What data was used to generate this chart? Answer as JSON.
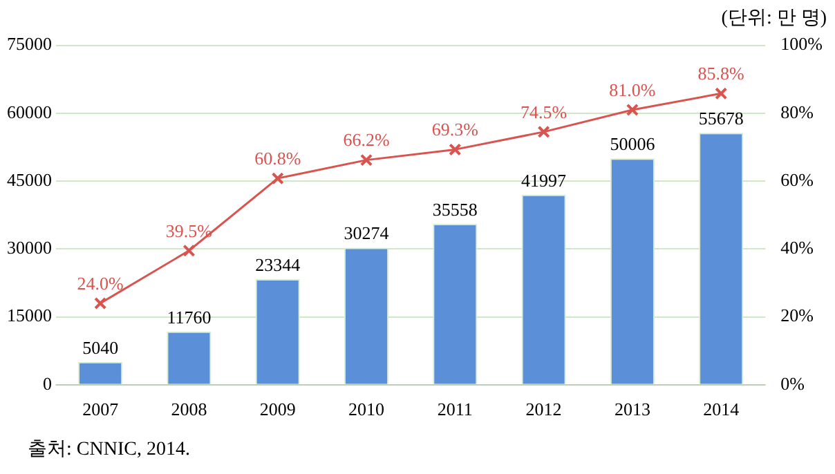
{
  "chart_data": {
    "type": "bar",
    "categories": [
      "2007",
      "2008",
      "2009",
      "2010",
      "2011",
      "2012",
      "2013",
      "2014"
    ],
    "series": [
      {
        "color": "#5b8fd8",
        "values": [
          5040,
          11760,
          23344,
          30274,
          35558,
          41997,
          50006,
          55678
        ],
        "value_labels": [
          "5040",
          "11760",
          "23344",
          "30274",
          "35558",
          "41997",
          "50006",
          "55678"
        ]
      },
      {
        "type": "line",
        "axis": "y2",
        "color": "#d9534f",
        "marker": "cross",
        "values": [
          24.0,
          39.5,
          60.8,
          66.2,
          69.3,
          74.5,
          81.0,
          85.8
        ],
        "value_labels": [
          "24.0%",
          "39.5%",
          "60.8%",
          "66.2%",
          "69.3%",
          "74.5%",
          "81.0%",
          "85.8%"
        ]
      }
    ],
    "ylim": [
      0,
      75000
    ],
    "yticks": [
      0,
      15000,
      30000,
      45000,
      60000,
      75000
    ],
    "y2lim": [
      0,
      100
    ],
    "y2ticks": [
      {
        "value": 0,
        "label": "0%"
      },
      {
        "value": 20,
        "label": "20%"
      },
      {
        "value": 40,
        "label": "40%"
      },
      {
        "value": 60,
        "label": "60%"
      },
      {
        "value": 80,
        "label": "80%"
      },
      {
        "value": 100,
        "label": "100%"
      }
    ],
    "grid": "y",
    "legend": false,
    "annotations": [
      "(단위: 만 명)",
      "출처: CNNIC, 2014."
    ]
  }
}
